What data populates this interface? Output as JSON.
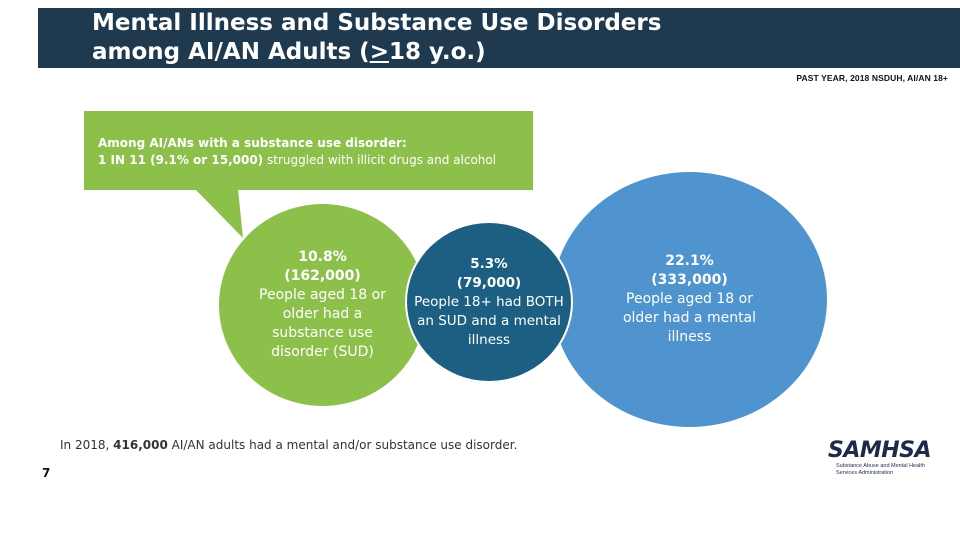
{
  "title": {
    "line1": "Mental Illness and Substance Use Disorders",
    "line2_pre": "among AI/AN Adults (",
    "line2_ge": ">",
    "line2_post": "18 y.o.)"
  },
  "source_label": "PAST YEAR, 2018 NSDUH, AI/AN 18+",
  "callout": {
    "line1": "Among AI/ANs with a substance use disorder:",
    "line2_bold": "1 IN 11 (9.1% or 15,000)",
    "line2_rest": " struggled with illicit drugs and alcohol"
  },
  "circles": {
    "sud": {
      "percent": "10.8%",
      "count": "(162,000)",
      "description": "People aged 18 or older had a substance use disorder (SUD)"
    },
    "both": {
      "percent": "5.3%",
      "count": "(79,000)",
      "description": "People 18+ had BOTH an SUD and a mental illness"
    },
    "mental": {
      "percent": "22.1%",
      "count": "(333,000)",
      "description": "People aged 18 or older had a mental illness"
    }
  },
  "footnote": {
    "pre": "In 2018, ",
    "bold": "416,000",
    "post": " AI/AN adults had a mental and/or substance use disorder."
  },
  "page_number": "7",
  "logo": {
    "word": "SAMHSA",
    "subtitle_line1": "Substance Abuse and Mental Health",
    "subtitle_line2": "Services Administration"
  },
  "colors": {
    "header": "#1f3a4f",
    "green": "#8dc04b",
    "blue": "#4f93cf",
    "teal": "#1c5f82"
  }
}
